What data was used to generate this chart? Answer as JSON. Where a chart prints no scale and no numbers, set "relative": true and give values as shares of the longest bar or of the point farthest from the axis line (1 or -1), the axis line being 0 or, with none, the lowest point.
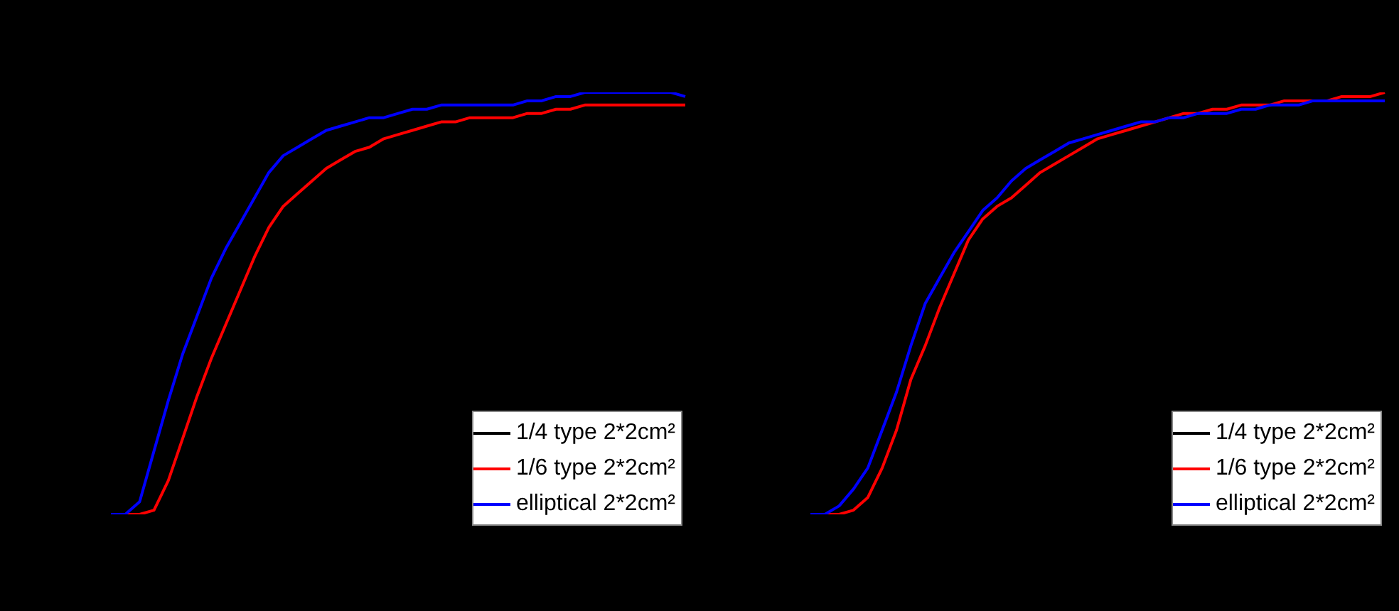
{
  "chart_data": [
    {
      "type": "line",
      "relative": true,
      "legend": "bottom right",
      "categories": [
        null,
        null,
        null,
        null,
        null,
        null,
        null,
        null,
        null,
        null,
        null,
        null,
        null,
        null,
        null,
        null,
        null,
        null,
        null,
        null,
        null,
        null,
        null,
        null,
        null,
        null,
        null,
        null,
        null,
        null,
        null,
        null,
        null,
        null,
        null,
        null,
        null,
        null,
        null,
        null,
        null
      ],
      "series": [
        {
          "name": "1/4 type 2*2cm²",
          "color": "#000000",
          "values": [
            null,
            null,
            null,
            null,
            null,
            null,
            null,
            null,
            null,
            null,
            null,
            null,
            null,
            null,
            null,
            null,
            null,
            null,
            null,
            null,
            null,
            null,
            null,
            null,
            null,
            null,
            null,
            null,
            null,
            null,
            null,
            null,
            null,
            null,
            null,
            null,
            null,
            null,
            null,
            null,
            null
          ]
        },
        {
          "name": "1/6 type 2*2cm²",
          "color": "#ff0000",
          "values": [
            0,
            0,
            0,
            0.01,
            0.08,
            0.18,
            0.28,
            0.37,
            0.45,
            0.53,
            0.61,
            0.68,
            0.73,
            0.76,
            0.79,
            0.82,
            0.84,
            0.86,
            0.87,
            0.89,
            0.9,
            0.91,
            0.92,
            0.93,
            0.93,
            0.94,
            0.94,
            0.94,
            0.94,
            0.95,
            0.95,
            0.96,
            0.96,
            0.97,
            0.97,
            0.97,
            0.97,
            0.97,
            0.97,
            0.97,
            0.97
          ]
        },
        {
          "name": "elliptical 2*2cm²",
          "color": "#0000ff",
          "values": [
            0,
            0,
            0.03,
            0.15,
            0.27,
            0.38,
            0.47,
            0.56,
            0.63,
            0.69,
            0.75,
            0.81,
            0.85,
            0.87,
            0.89,
            0.91,
            0.92,
            0.93,
            0.94,
            0.94,
            0.95,
            0.96,
            0.96,
            0.97,
            0.97,
            0.97,
            0.97,
            0.97,
            0.97,
            0.98,
            0.98,
            0.99,
            0.99,
            1,
            1,
            1,
            1,
            1,
            1,
            1,
            0.99
          ]
        }
      ]
    },
    {
      "type": "line",
      "relative": true,
      "legend": "bottom right",
      "categories": [
        null,
        null,
        null,
        null,
        null,
        null,
        null,
        null,
        null,
        null,
        null,
        null,
        null,
        null,
        null,
        null,
        null,
        null,
        null,
        null,
        null,
        null,
        null,
        null,
        null,
        null,
        null,
        null,
        null,
        null,
        null,
        null,
        null,
        null,
        null,
        null,
        null,
        null,
        null,
        null,
        null
      ],
      "series": [
        {
          "name": "1/4 type 2*2cm²",
          "color": "#000000",
          "values": [
            null,
            null,
            null,
            null,
            null,
            null,
            null,
            null,
            null,
            null,
            null,
            null,
            null,
            null,
            null,
            null,
            null,
            null,
            null,
            null,
            null,
            null,
            null,
            null,
            null,
            null,
            null,
            null,
            null,
            null,
            null,
            null,
            null,
            null,
            null,
            null,
            null,
            null,
            null,
            null,
            null
          ]
        },
        {
          "name": "1/6 type 2*2cm²",
          "color": "#ff0000",
          "values": [
            0,
            0,
            0,
            0.01,
            0.04,
            0.11,
            0.2,
            0.32,
            0.4,
            0.49,
            0.57,
            0.65,
            0.7,
            0.73,
            0.75,
            0.78,
            0.81,
            0.83,
            0.85,
            0.87,
            0.89,
            0.9,
            0.91,
            0.92,
            0.93,
            0.94,
            0.95,
            0.95,
            0.96,
            0.96,
            0.97,
            0.97,
            0.97,
            0.98,
            0.98,
            0.98,
            0.98,
            0.99,
            0.99,
            0.99,
            1
          ]
        },
        {
          "name": "elliptical 2*2cm²",
          "color": "#0000ff",
          "values": [
            0,
            0,
            0.02,
            0.06,
            0.11,
            0.2,
            0.29,
            0.4,
            0.5,
            0.56,
            0.62,
            0.67,
            0.72,
            0.75,
            0.79,
            0.82,
            0.84,
            0.86,
            0.88,
            0.89,
            0.9,
            0.91,
            0.92,
            0.93,
            0.93,
            0.94,
            0.94,
            0.95,
            0.95,
            0.95,
            0.96,
            0.96,
            0.97,
            0.97,
            0.97,
            0.98,
            0.98,
            0.98,
            0.98,
            0.98,
            0.98
          ]
        }
      ]
    }
  ]
}
